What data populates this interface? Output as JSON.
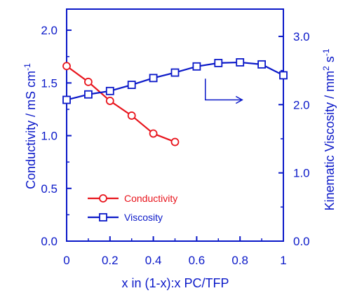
{
  "chart_data": {
    "type": "line",
    "xlabel": "x in (1-x):x PC/TFP",
    "ylabel_left": "Conductivity / mS cm",
    "ylabel_left_sup": "-1",
    "ylabel_right_main": "Kinematic Viscosity / mm",
    "ylabel_right_sup1": "2",
    "ylabel_right_mid": " s",
    "ylabel_right_sup2": "-1",
    "xlim": [
      0,
      1
    ],
    "ylim_left": [
      0,
      2.2
    ],
    "ylim_right": [
      0,
      3.4
    ],
    "x_ticks": [
      0,
      0.2,
      0.4,
      0.6,
      0.8,
      1
    ],
    "x_tick_labels": [
      "0",
      "0.2",
      "0.4",
      "0.6",
      "0.8",
      "1"
    ],
    "y_left_ticks": [
      0,
      0.5,
      1.0,
      1.5,
      2.0
    ],
    "y_left_tick_labels": [
      "0.0",
      "0.5",
      "1.0",
      "1.5",
      "2.0"
    ],
    "y_right_ticks": [
      0,
      1.0,
      2.0,
      3.0
    ],
    "y_right_tick_labels": [
      "0.0",
      "1.0",
      "2.0",
      "3.0"
    ],
    "series": [
      {
        "name": "Conductivity",
        "axis": "left",
        "marker": "circle",
        "color": "#e8141c",
        "x": [
          0,
          0.1,
          0.2,
          0.3,
          0.4,
          0.5
        ],
        "y": [
          1.66,
          1.51,
          1.33,
          1.19,
          1.02,
          0.94
        ]
      },
      {
        "name": "Viscosity",
        "axis": "right",
        "marker": "square",
        "color": "#0a18c8",
        "x": [
          0,
          0.1,
          0.2,
          0.3,
          0.4,
          0.5,
          0.6,
          0.7,
          0.8,
          0.9,
          1.0
        ],
        "y": [
          2.07,
          2.15,
          2.2,
          2.29,
          2.39,
          2.47,
          2.56,
          2.61,
          2.62,
          2.59,
          2.43
        ]
      }
    ],
    "legend_position": "bottom-left",
    "annotation": {
      "type": "arrow",
      "pointing": "right-axis",
      "from_x": 0.64,
      "from_y_right": 2.38,
      "corner_y_right": 2.07,
      "to_x": 0.81
    }
  }
}
